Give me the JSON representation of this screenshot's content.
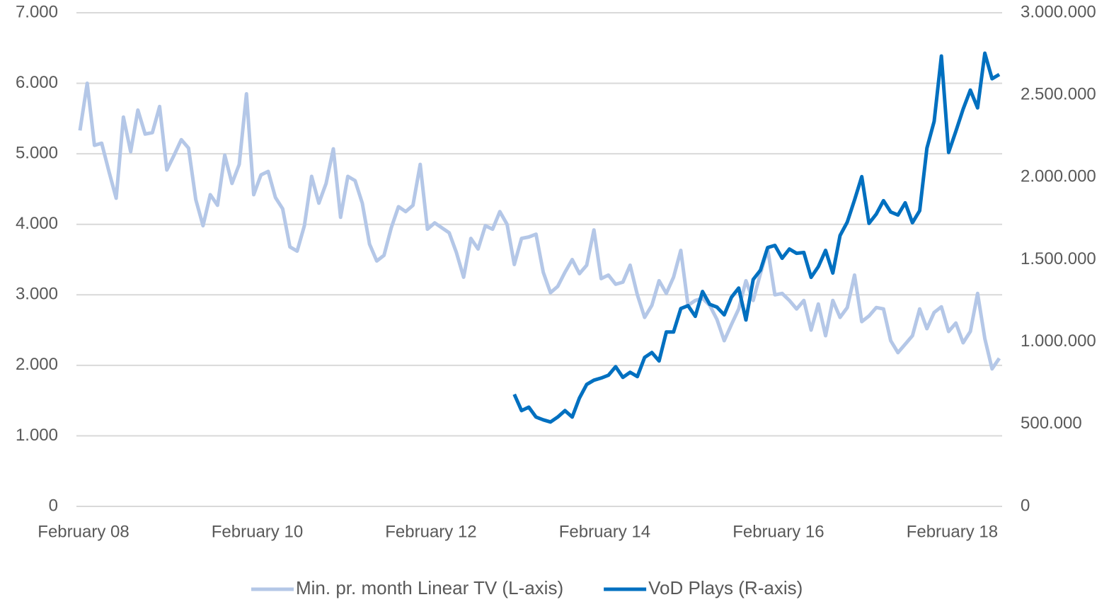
{
  "chart_data": {
    "type": "line",
    "categories": [
      "February 08",
      null,
      null,
      null,
      null,
      null,
      null,
      null,
      null,
      null,
      null,
      null,
      null,
      null,
      null,
      null,
      null,
      null,
      null,
      null,
      null,
      null,
      null,
      null,
      "February 10",
      null,
      null,
      null,
      null,
      null,
      null,
      null,
      null,
      null,
      null,
      null,
      null,
      null,
      null,
      null,
      null,
      null,
      null,
      null,
      null,
      null,
      null,
      null,
      "February 12",
      null,
      null,
      null,
      null,
      null,
      null,
      null,
      null,
      null,
      null,
      null,
      null,
      null,
      null,
      null,
      null,
      null,
      null,
      null,
      null,
      null,
      null,
      null,
      "February 14",
      null,
      null,
      null,
      null,
      null,
      null,
      null,
      null,
      null,
      null,
      null,
      null,
      null,
      null,
      null,
      null,
      null,
      null,
      null,
      null,
      null,
      null,
      null,
      "February 16",
      null,
      null,
      null,
      null,
      null,
      null,
      null,
      null,
      null,
      null,
      null,
      null,
      null,
      null,
      null,
      null,
      null,
      null,
      null,
      null,
      null,
      null,
      null,
      "February 18",
      null,
      null,
      null,
      null,
      null,
      null,
      null
    ],
    "series": [
      {
        "name": "Min. pr. month Linear TV (L-axis)",
        "color": "#b4c7e7",
        "axis": "y",
        "values": [
          5330,
          6000,
          5120,
          5150,
          4750,
          4370,
          5520,
          5030,
          5620,
          5280,
          5300,
          5670,
          4770,
          4980,
          5200,
          5080,
          4350,
          3980,
          4420,
          4270,
          4980,
          4580,
          4850,
          5850,
          4420,
          4700,
          4750,
          4380,
          4220,
          3680,
          3620,
          3980,
          4680,
          4300,
          4580,
          5070,
          4100,
          4680,
          4620,
          4300,
          3720,
          3480,
          3560,
          3950,
          4250,
          4180,
          4270,
          4850,
          3930,
          4020,
          3950,
          3880,
          3600,
          3250,
          3800,
          3650,
          3980,
          3930,
          4180,
          4000,
          3430,
          3800,
          3820,
          3860,
          3320,
          3030,
          3120,
          3320,
          3500,
          3300,
          3420,
          3920,
          3230,
          3280,
          3150,
          3180,
          3420,
          3000,
          2680,
          2850,
          3200,
          3020,
          3250,
          3630,
          2850,
          2920,
          2950,
          2850,
          2650,
          2350,
          2580,
          2800,
          3200,
          2920,
          3300,
          3650,
          3000,
          3020,
          2920,
          2800,
          2920,
          2500,
          2870,
          2420,
          2920,
          2680,
          2820,
          3280,
          2620,
          2700,
          2820,
          2800,
          2350,
          2180,
          2300,
          2420,
          2800,
          2520,
          2750,
          2830,
          2480,
          2600,
          2320,
          2480,
          3020,
          2380,
          1950,
          2100
        ]
      },
      {
        "name": "VoD Plays (R-axis)",
        "color": "#0070c0",
        "axis": "y2",
        "values": [
          null,
          null,
          null,
          null,
          null,
          null,
          null,
          null,
          null,
          null,
          null,
          null,
          null,
          null,
          null,
          null,
          null,
          null,
          null,
          null,
          null,
          null,
          null,
          null,
          null,
          null,
          null,
          null,
          null,
          null,
          null,
          null,
          null,
          null,
          null,
          null,
          null,
          null,
          null,
          null,
          null,
          null,
          null,
          null,
          null,
          null,
          null,
          null,
          null,
          null,
          null,
          null,
          null,
          null,
          null,
          null,
          null,
          null,
          null,
          null,
          681000,
          582000,
          603000,
          543000,
          526000,
          513000,
          543000,
          582000,
          543000,
          659000,
          741000,
          767000,
          780000,
          797000,
          849000,
          784000,
          815000,
          789000,
          905000,
          935000,
          884000,
          1060000,
          1060000,
          1202000,
          1220000,
          1155000,
          1306000,
          1228000,
          1211000,
          1164000,
          1271000,
          1327000,
          1133000,
          1379000,
          1435000,
          1573000,
          1586000,
          1508000,
          1564000,
          1538000,
          1543000,
          1392000,
          1457000,
          1556000,
          1418000,
          1646000,
          1728000,
          1862000,
          2004000,
          1720000,
          1776000,
          1858000,
          1789000,
          1771000,
          1845000,
          1724000,
          1797000,
          2177000,
          2340000,
          2737000,
          2151000,
          2280000,
          2414000,
          2530000,
          2422000,
          2754000,
          2599000,
          2625000
        ]
      }
    ],
    "ylim": [
      0,
      7000
    ],
    "yticks": [
      0,
      {
        "value": 1000,
        "label": "1.000"
      },
      {
        "value": 2000,
        "label": "2.000"
      },
      {
        "value": 3000,
        "label": "3.000"
      },
      {
        "value": 4000,
        "label": "4.000"
      },
      {
        "value": 5000,
        "label": "5.000"
      },
      {
        "value": 6000,
        "label": "6.000"
      },
      {
        "value": 7000,
        "label": "7.000"
      }
    ],
    "y2lim": [
      0,
      3000000
    ],
    "y2ticks": [
      0,
      {
        "value": 500000,
        "label": "500.000"
      },
      {
        "value": 1000000,
        "label": "1.000.000"
      },
      {
        "value": 1500000,
        "label": "1.500.000"
      },
      {
        "value": 2000000,
        "label": "2.000.000"
      },
      {
        "value": 2500000,
        "label": "2.500.000"
      },
      {
        "value": 3000000,
        "label": "3.000.000"
      }
    ],
    "grid": true,
    "legend": "bottom"
  }
}
